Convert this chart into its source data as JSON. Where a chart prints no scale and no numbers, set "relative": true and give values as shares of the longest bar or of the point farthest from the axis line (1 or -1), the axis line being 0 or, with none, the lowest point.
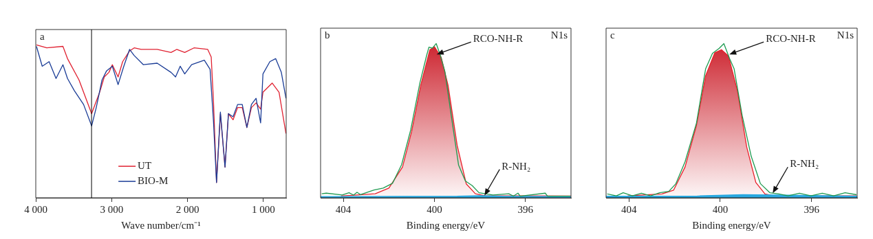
{
  "chart_data": [
    {
      "type": "line",
      "relative": true,
      "xlabel": "Wave number/cm⁻¹",
      "xlim": [
        4000,
        700
      ],
      "xticks": [
        {
          "value": 4000,
          "label": "4 000"
        },
        {
          "value": 3000,
          "label": "3 000"
        },
        {
          "value": 2000,
          "label": "2 000"
        },
        {
          "value": 1000,
          "label": "1 000"
        }
      ],
      "tick_labels": "x",
      "legend": "bottom",
      "annotations": [
        "a"
      ],
      "ref_lines": [
        {
          "axis": "x",
          "value": 3265,
          "color": "#000000"
        }
      ],
      "series": [
        {
          "name": "UT",
          "color": "#e02030",
          "x": [
            3991,
            3855,
            3642,
            3582,
            3430,
            3264,
            3158,
            3097,
            3036,
            2991,
            2915,
            2855,
            2764,
            2703,
            2612,
            2400,
            2218,
            2143,
            2037,
            1915,
            1734,
            1688,
            1658,
            1618,
            1567,
            1506,
            1461,
            1400,
            1340,
            1279,
            1218,
            1158,
            1097,
            1037,
            1006,
            885,
            794,
            703
          ],
          "values": [
            1.0,
            0.98,
            0.99,
            0.91,
            0.77,
            0.55,
            0.69,
            0.79,
            0.82,
            0.87,
            0.79,
            0.89,
            0.96,
            0.98,
            0.97,
            0.97,
            0.95,
            0.97,
            0.95,
            0.98,
            0.97,
            0.92,
            0.63,
            0.1,
            0.55,
            0.2,
            0.55,
            0.51,
            0.59,
            0.59,
            0.46,
            0.59,
            0.62,
            0.58,
            0.69,
            0.75,
            0.69,
            0.42
          ]
        },
        {
          "name": "BIO-M",
          "color": "#1a3c96",
          "x": [
            3991,
            3915,
            3824,
            3733,
            3642,
            3582,
            3491,
            3370,
            3264,
            3203,
            3127,
            3067,
            2991,
            2915,
            2840,
            2764,
            2703,
            2582,
            2400,
            2218,
            2158,
            2097,
            2037,
            1946,
            1779,
            1703,
            1658,
            1618,
            1567,
            1506,
            1461,
            1400,
            1340,
            1279,
            1218,
            1158,
            1097,
            1037,
            1006,
            915,
            839,
            764,
            703
          ],
          "values": [
            0.99,
            0.86,
            0.89,
            0.78,
            0.87,
            0.78,
            0.7,
            0.61,
            0.47,
            0.59,
            0.77,
            0.83,
            0.86,
            0.74,
            0.86,
            0.97,
            0.93,
            0.87,
            0.88,
            0.82,
            0.79,
            0.86,
            0.81,
            0.87,
            0.9,
            0.84,
            0.5,
            0.1,
            0.56,
            0.2,
            0.55,
            0.53,
            0.61,
            0.61,
            0.46,
            0.61,
            0.65,
            0.49,
            0.81,
            0.89,
            0.91,
            0.82,
            0.65
          ]
        }
      ]
    },
    {
      "type": "line",
      "relative": true,
      "xlabel": "Binding energy/eV",
      "xlim": [
        405,
        394
      ],
      "xticks": [
        404,
        400,
        396
      ],
      "tick_labels": "x",
      "annotations": [
        "b",
        "N1s",
        {
          "text": "RCO-NH-R",
          "x": 399.9,
          "y": 0.93
        },
        {
          "text": "R-NH₂",
          "x": 397.8,
          "y": 0.015
        }
      ],
      "series": [
        {
          "type": "area",
          "color": "#c8101c",
          "x": [
            404.1,
            402.6,
            402.0,
            401.4,
            401.0,
            400.6,
            400.2,
            400.0,
            399.7,
            399.4,
            399.0,
            398.6,
            398.2,
            397.8,
            394.0
          ],
          "values": [
            0.012,
            0.026,
            0.063,
            0.2,
            0.43,
            0.73,
            0.96,
            0.98,
            0.91,
            0.73,
            0.34,
            0.09,
            0.026,
            0.014,
            0.012
          ]
        },
        {
          "type": "area",
          "color": "#29a8e0",
          "x": [
            405,
            399,
            398,
            397,
            394
          ],
          "values": [
            0.008,
            0.01,
            0.014,
            0.01,
            0.008
          ]
        },
        {
          "type": "line",
          "color": "#1e9a50",
          "x": [
            404.95,
            404.75,
            404.05,
            403.75,
            403.55,
            403.4,
            403.25,
            402.65,
            402.25,
            401.84,
            401.44,
            401.04,
            400.64,
            400.34,
            400.24,
            400.09,
            399.92,
            399.74,
            399.54,
            399.24,
            398.94,
            398.64,
            398.34,
            398.04,
            397.43,
            396.73,
            396.53,
            396.33,
            396.23,
            395.13,
            395.03,
            394.03
          ],
          "values": [
            0.026,
            0.03,
            0.018,
            0.033,
            0.018,
            0.036,
            0.021,
            0.051,
            0.063,
            0.094,
            0.215,
            0.441,
            0.743,
            0.924,
            0.977,
            0.97,
            1.0,
            0.924,
            0.819,
            0.514,
            0.213,
            0.109,
            0.079,
            0.033,
            0.018,
            0.026,
            0.011,
            0.03,
            0.011,
            0.03,
            0.011,
            0.011
          ]
        }
      ]
    },
    {
      "type": "line",
      "relative": true,
      "xlabel": "Binding energy/eV",
      "xlim": [
        405,
        394
      ],
      "xticks": [
        404,
        400,
        396
      ],
      "tick_labels": "x",
      "annotations": [
        "c",
        "N1s",
        {
          "text": "RCO-NH-R",
          "x": 399.6,
          "y": 0.93
        },
        {
          "text": "R-NH₂",
          "x": 397.7,
          "y": 0.03
        }
      ],
      "series": [
        {
          "type": "area",
          "color": "#c8101c",
          "x": [
            404.05,
            402.55,
            402.04,
            401.54,
            401.04,
            400.64,
            400.24,
            399.94,
            399.64,
            399.24,
            398.84,
            398.44,
            398.04,
            397.64,
            394.03
          ],
          "values": [
            0.013,
            0.025,
            0.05,
            0.2,
            0.47,
            0.79,
            0.94,
            0.96,
            0.92,
            0.69,
            0.33,
            0.1,
            0.025,
            0.013,
            0.013
          ]
        },
        {
          "type": "area",
          "color": "#29a8e0",
          "x": [
            405,
            401,
            399,
            397.5,
            394
          ],
          "values": [
            0.01,
            0.012,
            0.02,
            0.018,
            0.01
          ]
        },
        {
          "type": "line",
          "color": "#1e9a50",
          "x": [
            404.95,
            404.55,
            404.25,
            403.85,
            403.45,
            403.05,
            402.65,
            402.25,
            401.94,
            401.54,
            401.04,
            400.64,
            400.34,
            400.04,
            399.84,
            399.59,
            399.39,
            399.04,
            398.64,
            398.24,
            397.83,
            397.43,
            397.03,
            396.53,
            396.03,
            395.53,
            395.03,
            394.53,
            394.03
          ],
          "values": [
            0.025,
            0.013,
            0.033,
            0.013,
            0.03,
            0.013,
            0.033,
            0.042,
            0.092,
            0.234,
            0.485,
            0.836,
            0.936,
            0.97,
            1.0,
            0.903,
            0.836,
            0.535,
            0.268,
            0.092,
            0.033,
            0.025,
            0.013,
            0.03,
            0.013,
            0.03,
            0.013,
            0.033,
            0.02
          ]
        }
      ]
    }
  ]
}
